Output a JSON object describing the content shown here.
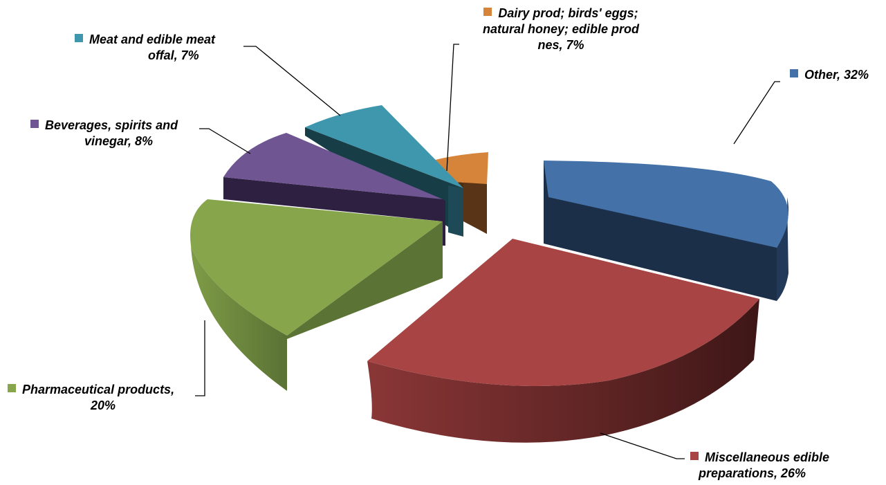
{
  "chart_data": {
    "type": "pie",
    "variant": "3d-exploded",
    "title": "",
    "slices": [
      {
        "label": "Other",
        "value": 32,
        "color": "#4472A8",
        "side": "#1C2F49",
        "text": [
          "Other, 32%"
        ]
      },
      {
        "label": "Miscellaneous edible preparations",
        "value": 26,
        "color": "#A84444",
        "side": "#4A1C1C",
        "text": [
          "Miscellaneous edible",
          "preparations, 26%"
        ]
      },
      {
        "label": "Pharmaceutical products",
        "value": 20,
        "color": "#87A54B",
        "side": "#5C7336",
        "text": [
          "Pharmaceutical products,",
          "20%"
        ]
      },
      {
        "label": "Beverages, spirits and vinegar",
        "value": 8,
        "color": "#6F5592",
        "side": "#2D2040",
        "text": [
          "Beverages, spirits and",
          "vinegar, 8%"
        ]
      },
      {
        "label": "Meat and edible meat offal",
        "value": 7,
        "color": "#3F97AE",
        "side": "#173D47",
        "text": [
          "Meat and edible meat",
          "offal, 7%"
        ]
      },
      {
        "label": "Dairy prod; birds' eggs; natural honey; edible prod nes",
        "value": 7,
        "color": "#D6843A",
        "side": "#5C3517",
        "text": [
          "Dairy prod; birds' eggs;",
          "natural honey; edible prod",
          "nes, 7%"
        ]
      }
    ],
    "legend": "none",
    "data_labels": "outside-with-leader-lines"
  }
}
